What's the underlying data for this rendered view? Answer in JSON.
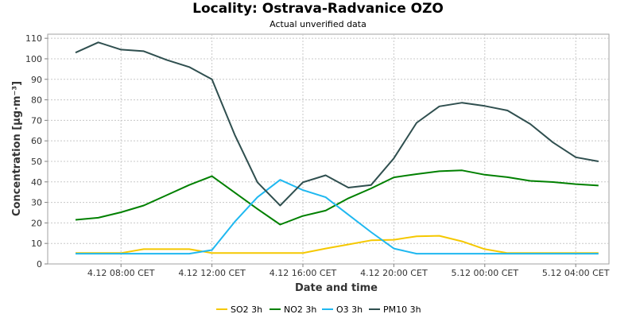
{
  "chart_data": {
    "type": "line",
    "title": "Locality: Ostrava-Radvanice OZO",
    "subtitle": "Actual unverified data",
    "xlabel": "Date and time",
    "ylabel": "Concentration [µg·m⁻³]",
    "ylim": [
      0,
      112
    ],
    "yticks": [
      0,
      10,
      20,
      30,
      40,
      50,
      60,
      70,
      80,
      90,
      100,
      110
    ],
    "xticks": [
      "4.12 08:00 CET",
      "4.12 12:00 CET",
      "4.12 16:00 CET",
      "4.12 20:00 CET",
      "5.12 00:00 CET",
      "5.12 04:00 CET"
    ],
    "x": [
      "4.12 06:00",
      "4.12 07:00",
      "4.12 08:00",
      "4.12 09:00",
      "4.12 10:00",
      "4.12 11:00",
      "4.12 12:00",
      "4.12 13:00",
      "4.12 14:00",
      "4.12 15:00",
      "4.12 16:00",
      "4.12 17:00",
      "4.12 18:00",
      "4.12 19:00",
      "4.12 20:00",
      "4.12 21:00",
      "4.12 22:00",
      "4.12 23:00",
      "5.12 00:00",
      "5.12 01:00",
      "5.12 02:00",
      "5.12 03:00",
      "5.12 04:00",
      "5.12 05:00"
    ],
    "grid": true,
    "legend_position": "bottom",
    "series": [
      {
        "name": "SO2 3h",
        "color": "#f5c800",
        "values": [
          5.3,
          5.3,
          5.3,
          7.2,
          7.2,
          7.2,
          5.3,
          5.3,
          5.3,
          5.3,
          5.3,
          7.5,
          9.5,
          11.5,
          11.8,
          13.5,
          13.7,
          11.0,
          7.2,
          5.3,
          5.3,
          5.3,
          5.3,
          5.3
        ]
      },
      {
        "name": "NO2 3h",
        "color": "#008000",
        "values": [
          21.5,
          22.5,
          25.2,
          28.5,
          33.5,
          38.5,
          42.8,
          34.8,
          26.8,
          19.2,
          23.4,
          26.0,
          32.0,
          36.8,
          42.2,
          43.8,
          45.2,
          45.6,
          43.5,
          42.3,
          40.5,
          39.9,
          38.9,
          38.2
        ]
      },
      {
        "name": "O3 3h",
        "color": "#1fb8f0",
        "values": [
          5.0,
          5.0,
          5.0,
          5.0,
          5.0,
          5.0,
          6.8,
          20.5,
          32.5,
          41.0,
          36.0,
          32.5,
          24.0,
          15.5,
          7.5,
          5.0,
          5.0,
          5.0,
          5.0,
          5.0,
          5.0,
          5.0,
          5.0,
          5.0
        ]
      },
      {
        "name": "PM10 3h",
        "color": "#2f4f4f",
        "values": [
          103.0,
          108.0,
          104.5,
          103.7,
          99.5,
          96.0,
          90.0,
          63.0,
          39.8,
          28.5,
          39.8,
          43.2,
          37.2,
          38.5,
          51.5,
          68.8,
          76.8,
          78.6,
          77.0,
          74.8,
          68.2,
          59.2,
          52.0,
          50.0
        ]
      }
    ]
  }
}
